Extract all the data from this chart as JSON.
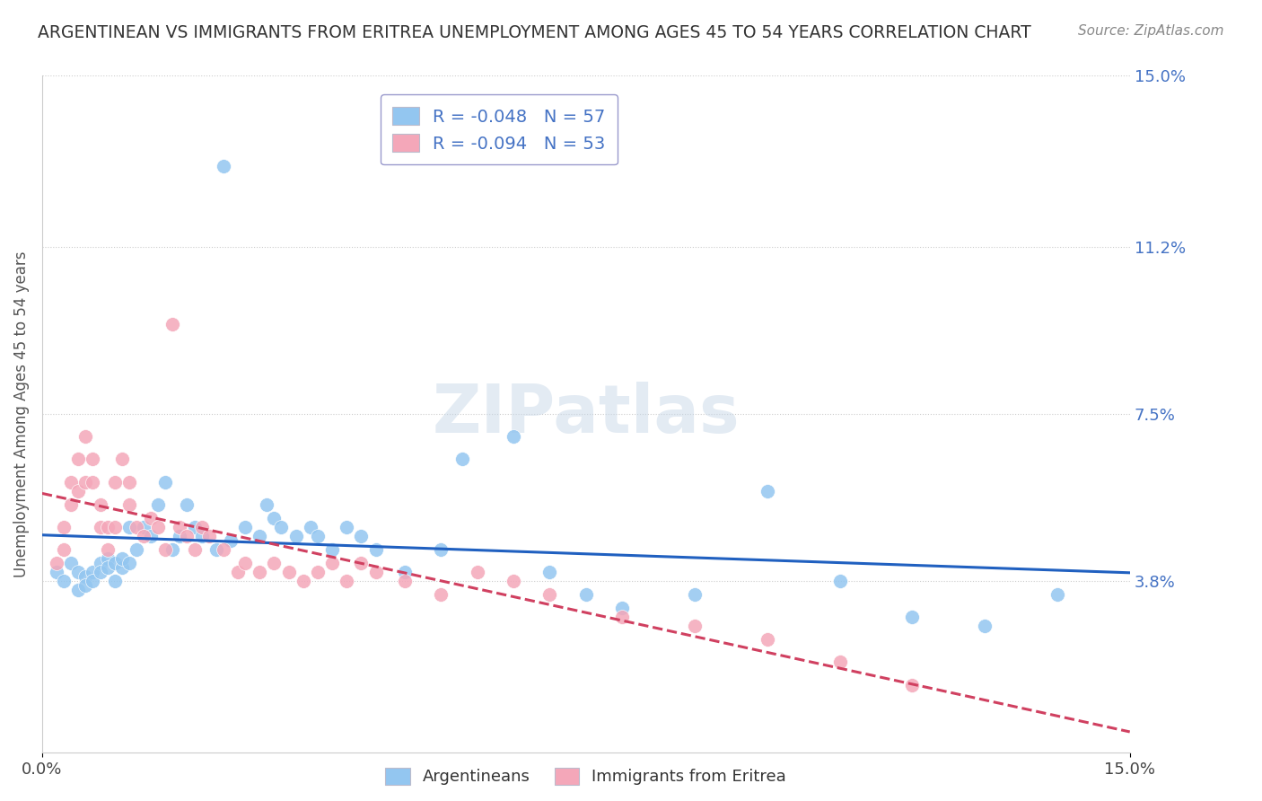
{
  "title": "ARGENTINEAN VS IMMIGRANTS FROM ERITREA UNEMPLOYMENT AMONG AGES 45 TO 54 YEARS CORRELATION CHART",
  "source": "Source: ZipAtlas.com",
  "ylabel": "Unemployment Among Ages 45 to 54 years",
  "xlim": [
    0,
    0.15
  ],
  "ylim": [
    0,
    0.15
  ],
  "ytick_right_labels": [
    "3.8%",
    "7.5%",
    "11.2%",
    "15.0%"
  ],
  "ytick_right_values": [
    0.038,
    0.075,
    0.112,
    0.15
  ],
  "legend_labels": [
    "Argentineans",
    "Immigrants from Eritrea"
  ],
  "legend_r": [
    -0.048,
    -0.094
  ],
  "legend_n": [
    57,
    53
  ],
  "blue_color": "#93c6f0",
  "pink_color": "#f4a7b9",
  "blue_line_color": "#2060c0",
  "pink_line_color": "#d04060",
  "background_color": "#ffffff",
  "watermark": "ZIPatlas",
  "argentineans_x": [
    0.002,
    0.003,
    0.004,
    0.005,
    0.005,
    0.006,
    0.006,
    0.007,
    0.007,
    0.008,
    0.008,
    0.009,
    0.009,
    0.01,
    0.01,
    0.011,
    0.011,
    0.012,
    0.012,
    0.013,
    0.014,
    0.015,
    0.016,
    0.017,
    0.018,
    0.019,
    0.02,
    0.021,
    0.022,
    0.024,
    0.025,
    0.026,
    0.028,
    0.03,
    0.031,
    0.032,
    0.033,
    0.035,
    0.037,
    0.038,
    0.04,
    0.042,
    0.044,
    0.046,
    0.05,
    0.055,
    0.058,
    0.065,
    0.07,
    0.075,
    0.08,
    0.09,
    0.1,
    0.11,
    0.12,
    0.13,
    0.14
  ],
  "argentineans_y": [
    0.04,
    0.038,
    0.042,
    0.04,
    0.036,
    0.039,
    0.037,
    0.04,
    0.038,
    0.042,
    0.04,
    0.043,
    0.041,
    0.042,
    0.038,
    0.041,
    0.043,
    0.05,
    0.042,
    0.045,
    0.05,
    0.048,
    0.055,
    0.06,
    0.045,
    0.048,
    0.055,
    0.05,
    0.048,
    0.045,
    0.13,
    0.047,
    0.05,
    0.048,
    0.055,
    0.052,
    0.05,
    0.048,
    0.05,
    0.048,
    0.045,
    0.05,
    0.048,
    0.045,
    0.04,
    0.045,
    0.065,
    0.07,
    0.04,
    0.035,
    0.032,
    0.035,
    0.058,
    0.038,
    0.03,
    0.028,
    0.035
  ],
  "eritrea_x": [
    0.002,
    0.003,
    0.003,
    0.004,
    0.004,
    0.005,
    0.005,
    0.006,
    0.006,
    0.007,
    0.007,
    0.008,
    0.008,
    0.009,
    0.009,
    0.01,
    0.01,
    0.011,
    0.012,
    0.012,
    0.013,
    0.014,
    0.015,
    0.016,
    0.017,
    0.018,
    0.019,
    0.02,
    0.021,
    0.022,
    0.023,
    0.025,
    0.027,
    0.028,
    0.03,
    0.032,
    0.034,
    0.036,
    0.038,
    0.04,
    0.042,
    0.044,
    0.046,
    0.05,
    0.055,
    0.06,
    0.065,
    0.07,
    0.08,
    0.09,
    0.1,
    0.11,
    0.12
  ],
  "eritrea_y": [
    0.042,
    0.05,
    0.045,
    0.055,
    0.06,
    0.058,
    0.065,
    0.06,
    0.07,
    0.065,
    0.06,
    0.05,
    0.055,
    0.05,
    0.045,
    0.05,
    0.06,
    0.065,
    0.055,
    0.06,
    0.05,
    0.048,
    0.052,
    0.05,
    0.045,
    0.095,
    0.05,
    0.048,
    0.045,
    0.05,
    0.048,
    0.045,
    0.04,
    0.042,
    0.04,
    0.042,
    0.04,
    0.038,
    0.04,
    0.042,
    0.038,
    0.042,
    0.04,
    0.038,
    0.035,
    0.04,
    0.038,
    0.035,
    0.03,
    0.028,
    0.025,
    0.02,
    0.015
  ]
}
